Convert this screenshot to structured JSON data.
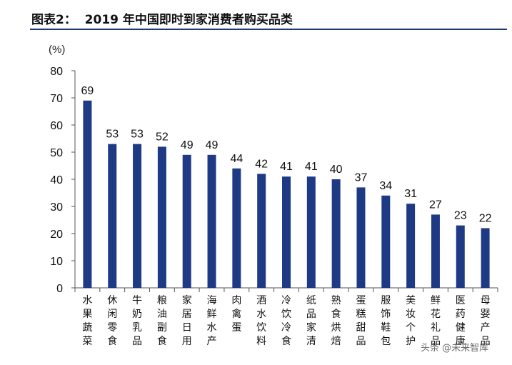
{
  "figure_title": "图表2：  2019 年中国即时到家消费者购买品类",
  "watermark": "头条 @未来智库",
  "chart_data": {
    "type": "bar",
    "title": "2019 年中国即时到家消费者购买品类",
    "unit": "(%)",
    "xlabel": "",
    "ylabel": "",
    "ylim": [
      0,
      80
    ],
    "yticks": [
      0,
      10,
      20,
      30,
      40,
      50,
      60,
      70,
      80
    ],
    "categories": [
      "水果蔬菜",
      "休闲零食",
      "牛奶乳品",
      "粮油副食",
      "家居日用",
      "海鲜水产",
      "肉禽蛋",
      "酒水饮料",
      "冷饮冷食",
      "纸品家清",
      "熟食烘焙",
      "蛋糕甜品",
      "服饰鞋包",
      "美妆个护",
      "鲜花礼品",
      "医药健康",
      "母婴产品"
    ],
    "values": [
      69,
      53,
      53,
      52,
      49,
      49,
      44,
      42,
      41,
      41,
      40,
      37,
      34,
      31,
      27,
      23,
      22
    ],
    "data_labels": [
      "69",
      "53",
      "53",
      "52",
      "49",
      "49",
      "44",
      "42",
      "41",
      "41",
      "40",
      "37",
      "34",
      "31",
      "27",
      "23",
      "22"
    ],
    "bar_color": "#1f3a84",
    "grid": false,
    "legend": "none"
  }
}
